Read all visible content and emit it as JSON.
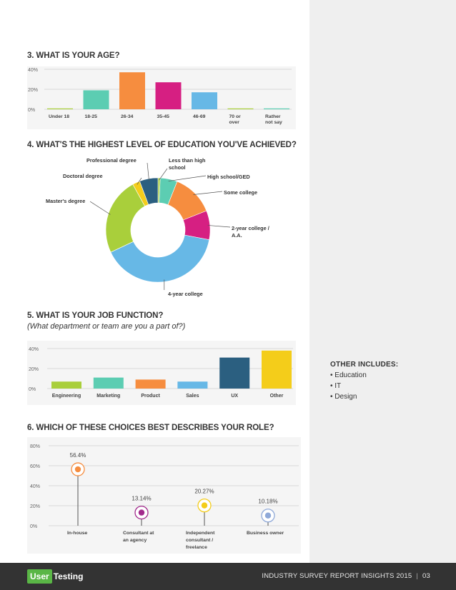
{
  "colors": {
    "teal": "#5ccdb2",
    "orange": "#f68d3f",
    "magenta": "#d61f82",
    "blue": "#67b8e6",
    "lime": "#a9cf3b",
    "navy": "#2b5f80",
    "yellow": "#f4cd1a",
    "purple": "#a22a8c",
    "lightblue": "#8fa9d8",
    "footer": "#333333",
    "brand_green": "#5ab646"
  },
  "sections": {
    "age_title": "3. WHAT IS YOUR AGE?",
    "education_title": "4. WHAT'S THE HIGHEST LEVEL OF EDUCATION YOU'VE ACHIEVED?",
    "job_title": "5. WHAT IS YOUR JOB FUNCTION?",
    "job_subtitle": "(What department or team are you a part of?)",
    "role_title": "6. WHICH OF THESE CHOICES BEST DESCRIBES YOUR ROLE?"
  },
  "other_includes": {
    "title": "OTHER INCLUDES:",
    "items": [
      "• Education",
      "• IT",
      "• Design"
    ]
  },
  "footer": {
    "logo_user": "User",
    "logo_testing": "Testing",
    "text": "INDUSTRY SURVEY REPORT INSIGHTS 2015",
    "separator": "|",
    "page": "03"
  },
  "chart_data": [
    {
      "type": "bar",
      "categories": [
        "Under 18",
        "18-25",
        "26-34",
        "35-45",
        "46-69",
        "70 or over",
        "Rather not say"
      ],
      "category_lines": [
        [
          "Under 18"
        ],
        [
          "18-25"
        ],
        [
          "26-34"
        ],
        [
          "35-45"
        ],
        [
          "46-69"
        ],
        [
          "70 or",
          "over"
        ],
        [
          "Rather",
          "not say"
        ]
      ],
      "values": [
        0.5,
        19,
        37,
        27,
        17,
        0.5,
        0.5
      ],
      "colors": [
        "#a9cf3b",
        "#5ccdb2",
        "#f68d3f",
        "#d61f82",
        "#67b8e6",
        "#a9cf3b",
        "#5ccdb2"
      ],
      "yticks": [
        "0%",
        "20%",
        "40%"
      ],
      "ylim": [
        0,
        40
      ],
      "grid": true
    },
    {
      "type": "pie",
      "labels": [
        "Less than high school",
        "High school/GED",
        "Some college",
        "2-year college / A.A.",
        "4-year college",
        "Master's degree",
        "Doctoral degree",
        "Professional degree"
      ],
      "label_lines": [
        [
          "Less than high",
          "school"
        ],
        [
          "High school/GED"
        ],
        [
          "Some college"
        ],
        [
          "2-year college /",
          "A.A."
        ],
        [
          "4-year college"
        ],
        [
          "Master's degree"
        ],
        [
          "Doctoral degree"
        ],
        [
          "Professional degree"
        ]
      ],
      "values": [
        0.7,
        5.3,
        13,
        9,
        40,
        24,
        2.3,
        5.7
      ],
      "colors": [
        "#a9cf3b",
        "#5ccdb2",
        "#f68d3f",
        "#d61f82",
        "#67b8e6",
        "#a9cf3b",
        "#f4cd1a",
        "#2b5f80"
      ],
      "donut": true
    },
    {
      "type": "bar",
      "categories": [
        "Engineering",
        "Marketing",
        "Product",
        "Sales",
        "UX",
        "Other"
      ],
      "values": [
        7,
        11,
        9,
        7,
        31,
        38
      ],
      "colors": [
        "#a9cf3b",
        "#5ccdb2",
        "#f68d3f",
        "#67b8e6",
        "#2b5f80",
        "#f4cd1a"
      ],
      "yticks": [
        "0%",
        "20%",
        "40%"
      ],
      "ylim": [
        0,
        40
      ],
      "grid": true
    },
    {
      "type": "scatter",
      "categories": [
        "In-house",
        "Consultant at an agency",
        "Independent consultant / freelance",
        "Business owner"
      ],
      "category_lines": [
        [
          "In-house"
        ],
        [
          "Consultant at",
          "an agency"
        ],
        [
          "Independent",
          "consultant /",
          "freelance"
        ],
        [
          "Business owner"
        ]
      ],
      "values": [
        56.4,
        13.14,
        20.27,
        10.18
      ],
      "value_labels": [
        "56.4%",
        "13.14%",
        "20.27%",
        "10.18%"
      ],
      "colors": [
        "#f68d3f",
        "#a22a8c",
        "#f4cd1a",
        "#8fa9d8"
      ],
      "yticks": [
        "0%",
        "20%",
        "40%",
        "60%",
        "80%"
      ],
      "ylim": [
        0,
        80
      ],
      "grid": true
    }
  ]
}
